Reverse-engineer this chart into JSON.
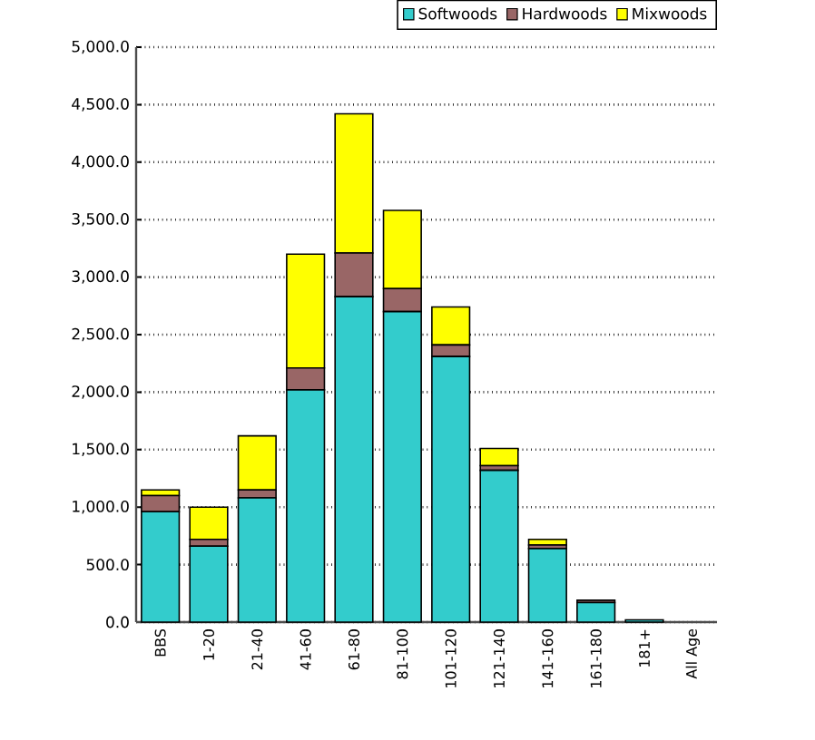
{
  "chart_data": {
    "type": "bar",
    "stacked": true,
    "categories": [
      "BBS",
      "1-20",
      "21-40",
      "41-60",
      "61-80",
      "81-100",
      "101-120",
      "121-140",
      "141-160",
      "161-180",
      "181+",
      "All Age"
    ],
    "series": [
      {
        "name": "Softwoods",
        "color": "#33cccc",
        "values": [
          960,
          660,
          1080,
          2020,
          2830,
          2700,
          2310,
          1320,
          640,
          170,
          20,
          0
        ]
      },
      {
        "name": "Hardwoods",
        "color": "#996666",
        "values": [
          140,
          60,
          70,
          190,
          380,
          200,
          100,
          40,
          30,
          20,
          null,
          0
        ]
      },
      {
        "name": "Mixwoods",
        "color": "#ffff00",
        "values": [
          50,
          280,
          470,
          990,
          1210,
          680,
          330,
          150,
          50,
          null,
          0,
          0
        ]
      }
    ],
    "ylim": [
      0,
      5000
    ],
    "yticks": [
      {
        "value": 0,
        "label": "0.0"
      },
      {
        "value": 500,
        "label": "500.0"
      },
      {
        "value": 1000,
        "label": "1,000.0"
      },
      {
        "value": 1500,
        "label": "1,500.0"
      },
      {
        "value": 2000,
        "label": "2,000.0"
      },
      {
        "value": 2500,
        "label": "2,500.0"
      },
      {
        "value": 3000,
        "label": "3,000.0"
      },
      {
        "value": 3500,
        "label": "3,500.0"
      },
      {
        "value": 4000,
        "label": "4,000.0"
      },
      {
        "value": 4500,
        "label": "4,500.0"
      },
      {
        "value": 5000,
        "label": "5,000.0"
      }
    ],
    "grid": "y",
    "legend": "top right"
  }
}
